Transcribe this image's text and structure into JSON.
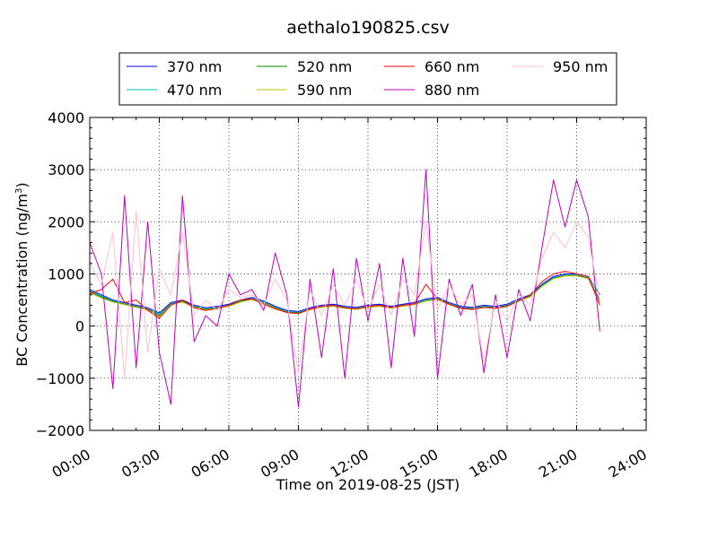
{
  "chart_data": {
    "type": "line",
    "title": "aethalo190825.csv",
    "xlabel": "Time on 2019-08-25 (JST)",
    "ylabel": "BC Concentration (ng/m",
    "ylabel_sup": "3",
    "ylabel_end": ")",
    "xlim_hours": [
      0,
      24
    ],
    "ylim": [
      -2000,
      4000
    ],
    "x_ticks": [
      0,
      3,
      6,
      9,
      12,
      15,
      18,
      21,
      24
    ],
    "x_tick_labels": [
      "00:00",
      "03:00",
      "06:00",
      "09:00",
      "12:00",
      "15:00",
      "18:00",
      "21:00",
      "24:00"
    ],
    "y_ticks": [
      -2000,
      -1000,
      0,
      1000,
      2000,
      3000,
      4000
    ],
    "y_tick_labels": [
      "−2000",
      "−1000",
      "0",
      "1000",
      "2000",
      "3000",
      "4000"
    ],
    "grid": true,
    "legend_position": "top, above plot",
    "x": [
      0.0,
      0.5,
      1.0,
      1.5,
      2.0,
      2.5,
      3.0,
      3.5,
      4.0,
      4.5,
      5.0,
      5.5,
      6.0,
      6.5,
      7.0,
      7.5,
      8.0,
      8.5,
      9.0,
      9.5,
      10.0,
      10.5,
      11.0,
      11.5,
      12.0,
      12.5,
      13.0,
      13.5,
      14.0,
      14.5,
      15.0,
      15.5,
      16.0,
      16.5,
      17.0,
      17.5,
      18.0,
      18.5,
      19.0,
      19.5,
      20.0,
      20.5,
      21.0,
      21.5,
      22.0
    ],
    "series": [
      {
        "name": "370 nm",
        "color": "#0000ff",
        "values": [
          700,
          600,
          500,
          450,
          400,
          350,
          250,
          450,
          500,
          400,
          350,
          380,
          420,
          500,
          550,
          480,
          380,
          300,
          280,
          350,
          400,
          420,
          380,
          360,
          400,
          420,
          380,
          420,
          450,
          520,
          550,
          450,
          380,
          360,
          400,
          380,
          420,
          520,
          600,
          800,
          950,
          1000,
          1000,
          950,
          600
        ]
      },
      {
        "name": "470 nm",
        "color": "#00bfbf",
        "values": [
          680,
          580,
          480,
          430,
          380,
          330,
          230,
          430,
          480,
          380,
          330,
          360,
          400,
          480,
          530,
          460,
          360,
          280,
          260,
          330,
          380,
          400,
          360,
          340,
          380,
          400,
          360,
          400,
          430,
          500,
          530,
          430,
          360,
          340,
          380,
          360,
          400,
          500,
          580,
          780,
          930,
          980,
          980,
          930,
          620
        ]
      },
      {
        "name": "520 nm",
        "color": "#008000",
        "values": [
          660,
          560,
          470,
          420,
          370,
          320,
          200,
          420,
          470,
          370,
          320,
          350,
          390,
          470,
          520,
          450,
          350,
          270,
          250,
          320,
          370,
          390,
          350,
          330,
          370,
          390,
          350,
          390,
          420,
          490,
          520,
          420,
          350,
          330,
          370,
          350,
          390,
          490,
          570,
          770,
          920,
          970,
          970,
          920,
          500
        ]
      },
      {
        "name": "590 nm",
        "color": "#bfbf00",
        "values": [
          640,
          540,
          460,
          410,
          360,
          310,
          180,
          410,
          460,
          360,
          310,
          340,
          380,
          460,
          510,
          440,
          340,
          260,
          240,
          310,
          360,
          380,
          340,
          320,
          360,
          380,
          340,
          380,
          410,
          480,
          510,
          410,
          340,
          320,
          360,
          340,
          380,
          480,
          560,
          760,
          910,
          960,
          960,
          910,
          450
        ]
      },
      {
        "name": "660 nm",
        "color": "#ff0000",
        "values": [
          620,
          700,
          900,
          450,
          500,
          300,
          150,
          400,
          500,
          350,
          300,
          340,
          400,
          500,
          520,
          420,
          330,
          260,
          240,
          330,
          380,
          400,
          350,
          330,
          380,
          400,
          360,
          400,
          430,
          800,
          520,
          420,
          340,
          320,
          360,
          340,
          380,
          480,
          600,
          850,
          1000,
          1050,
          1000,
          950,
          400
        ]
      },
      {
        "name": "880 nm",
        "color": "#bf00bf",
        "values": [
          1600,
          1000,
          -1200,
          2500,
          -800,
          2000,
          -500,
          -1500,
          2500,
          -300,
          200,
          0,
          1000,
          600,
          700,
          300,
          1400,
          600,
          -1550,
          900,
          -600,
          1100,
          -1000,
          1300,
          100,
          1200,
          -800,
          1300,
          -200,
          3000,
          -1000,
          900,
          200,
          800,
          -900,
          600,
          -600,
          700,
          100,
          1500,
          2800,
          1900,
          2800,
          2100,
          -100
        ]
      },
      {
        "name": "950 nm",
        "color": "#ffc0cb",
        "values": [
          1200,
          800,
          1800,
          -1000,
          2200,
          -500,
          1100,
          600,
          1800,
          200,
          500,
          300,
          700,
          550,
          600,
          400,
          900,
          500,
          -900,
          700,
          200,
          800,
          400,
          900,
          300,
          800,
          200,
          900,
          600,
          2000,
          300,
          800,
          400,
          600,
          -700,
          500,
          100,
          600,
          400,
          1300,
          1800,
          1500,
          2000,
          1700,
          500
        ]
      }
    ]
  }
}
